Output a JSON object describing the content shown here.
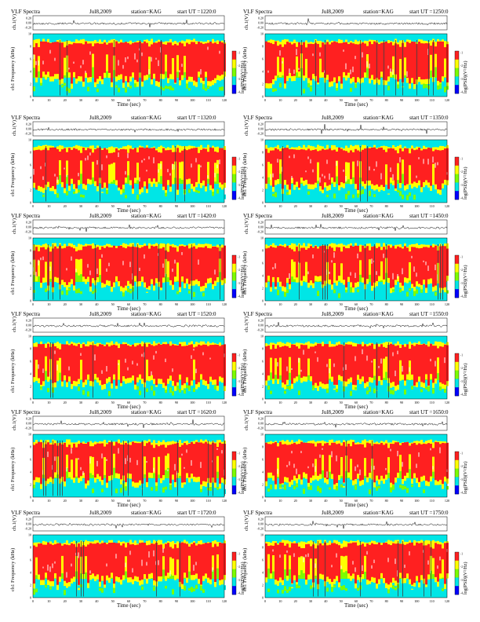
{
  "title_left": "VLF Spectra",
  "date": "Jul8,2009",
  "station_text": "station=KAG",
  "start_prefix": "start UT =",
  "ch_label": "ch.1(V)",
  "ch_ticks": [
    "0.20",
    "0.00",
    "-0.20"
  ],
  "freq_label": "Frequency (kHz)",
  "freq_prefix": "ch1",
  "freq_ticks": [
    "0",
    "2",
    "4",
    "6",
    "8",
    "10"
  ],
  "xlabel": "Time (sec)",
  "x_ticks_left": [
    "0",
    "10",
    "20",
    "30",
    "40",
    "50",
    "60",
    "70",
    "80",
    "90",
    "100",
    "110",
    "120"
  ],
  "x_ticks_right": [
    "0",
    "10",
    "20",
    "30",
    "40",
    "50",
    "60",
    "70",
    "80",
    "90",
    "100",
    "110",
    "120"
  ],
  "colorbar_label": "log(PSD)(V²/Hz)",
  "colorbar_ticks": [
    "-1",
    "-2",
    "-3",
    "-4"
  ],
  "colors": {
    "hot": "#ff2020",
    "warm": "#ffff00",
    "mid": "#7cfc00",
    "cool": "#00e6e6",
    "cold": "#0000ff"
  },
  "chart_data": [
    {
      "type": "heatmap",
      "start_ut": "1220:0",
      "xlim": [
        0,
        120
      ],
      "ylim_freq_khz": [
        0,
        10
      ]
    },
    {
      "type": "heatmap",
      "start_ut": "1250:0",
      "xlim": [
        0,
        120
      ],
      "ylim_freq_khz": [
        0,
        10
      ]
    },
    {
      "type": "heatmap",
      "start_ut": "1320:0",
      "xlim": [
        0,
        120
      ],
      "ylim_freq_khz": [
        0,
        10
      ]
    },
    {
      "type": "heatmap",
      "start_ut": "1350:0",
      "xlim": [
        0,
        120
      ],
      "ylim_freq_khz": [
        0,
        10
      ]
    },
    {
      "type": "heatmap",
      "start_ut": "1420:0",
      "xlim": [
        0,
        120
      ],
      "ylim_freq_khz": [
        0,
        10
      ]
    },
    {
      "type": "heatmap",
      "start_ut": "1450:0",
      "xlim": [
        0,
        120
      ],
      "ylim_freq_khz": [
        0,
        10
      ]
    },
    {
      "type": "heatmap",
      "start_ut": "1520:0",
      "xlim": [
        0,
        120
      ],
      "ylim_freq_khz": [
        0,
        10
      ]
    },
    {
      "type": "heatmap",
      "start_ut": "1550:0",
      "xlim": [
        0,
        120
      ],
      "ylim_freq_khz": [
        0,
        10
      ]
    },
    {
      "type": "heatmap",
      "start_ut": "1620:0",
      "xlim": [
        0,
        120
      ],
      "ylim_freq_khz": [
        0,
        10
      ]
    },
    {
      "type": "heatmap",
      "start_ut": "1650:0",
      "xlim": [
        0,
        120
      ],
      "ylim_freq_khz": [
        0,
        10
      ]
    },
    {
      "type": "heatmap",
      "start_ut": "1720:0",
      "xlim": [
        0,
        120
      ],
      "ylim_freq_khz": [
        0,
        10
      ]
    },
    {
      "type": "heatmap",
      "start_ut": "1750:0",
      "xlim": [
        0,
        120
      ],
      "ylim_freq_khz": [
        0,
        10
      ]
    }
  ]
}
